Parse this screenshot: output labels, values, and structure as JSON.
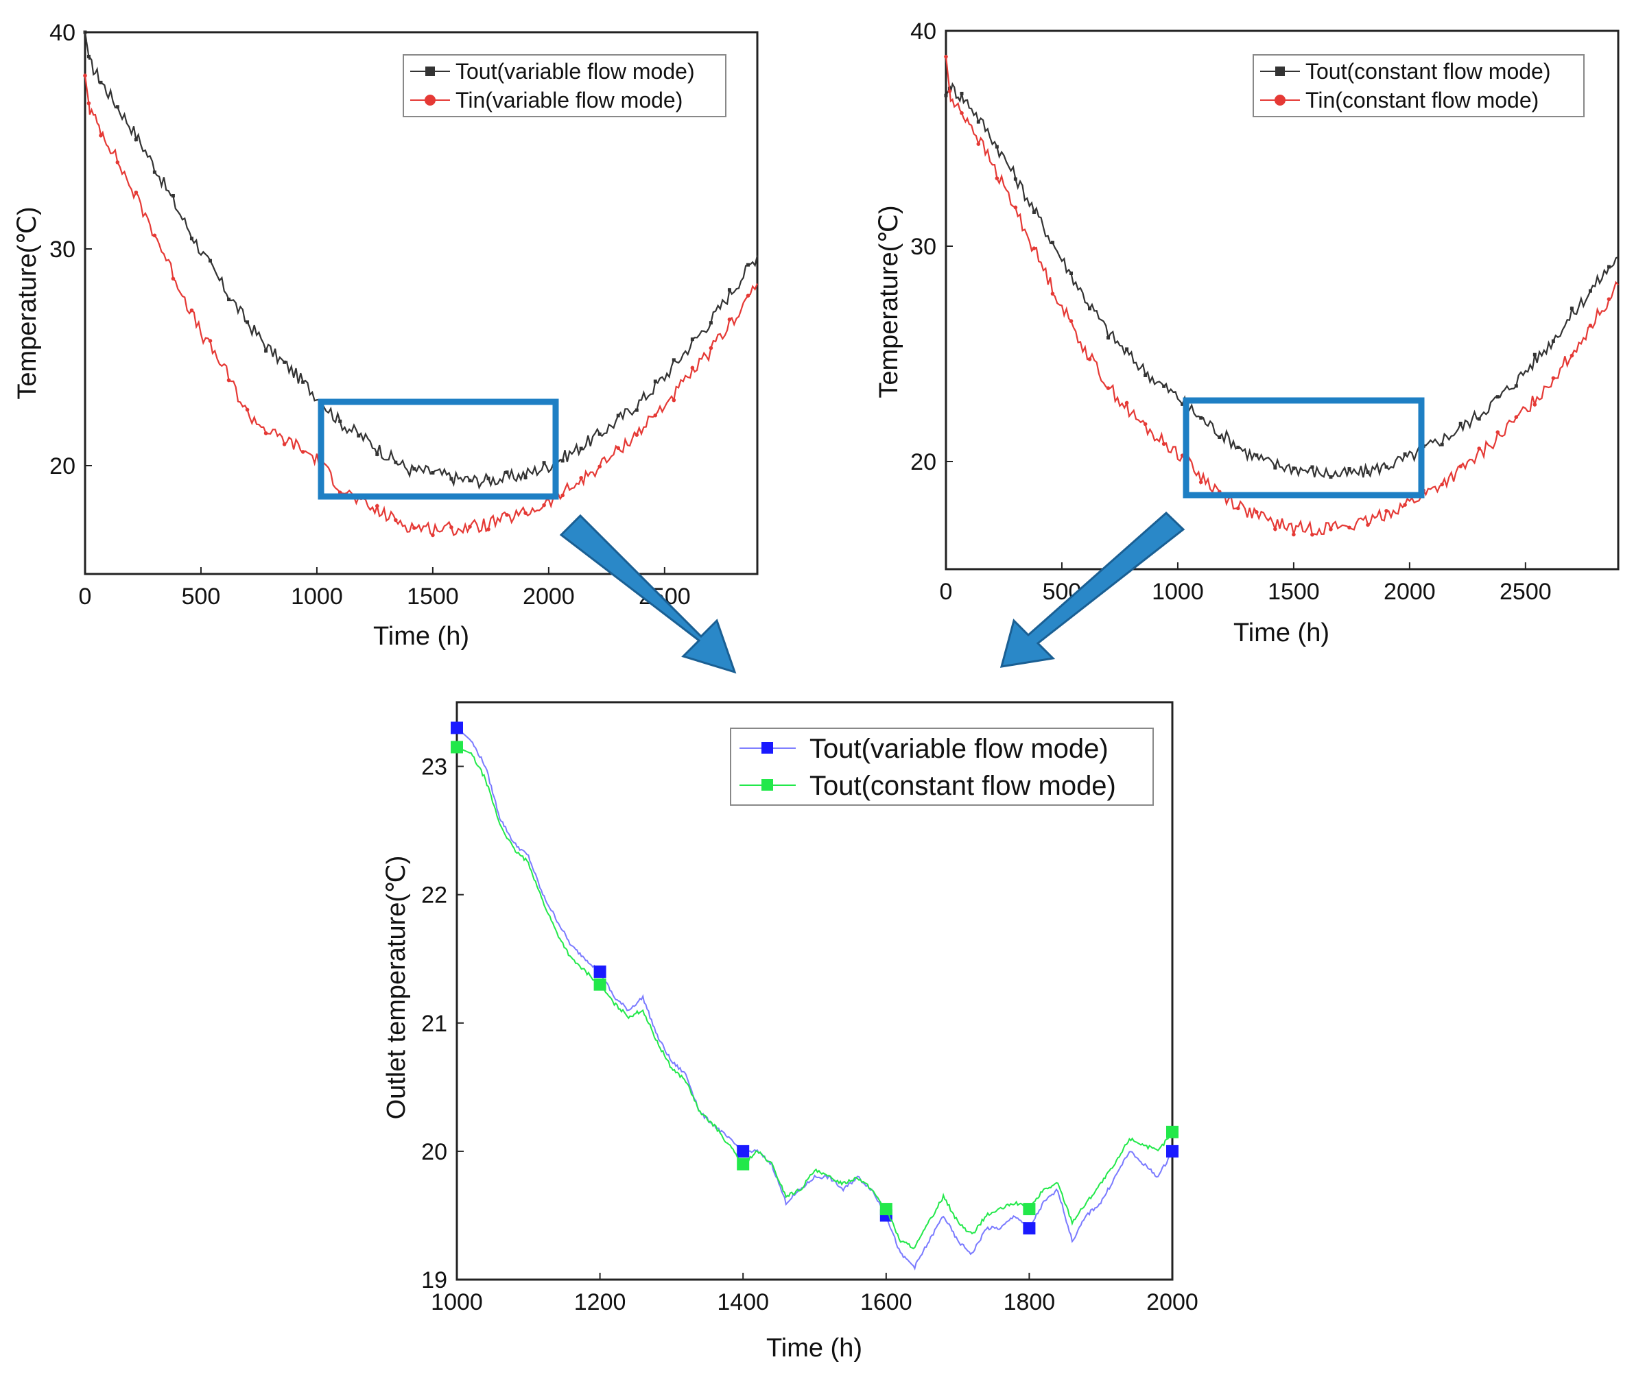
{
  "chart_data": [
    {
      "id": "left",
      "type": "line",
      "title": "",
      "xlabel": "Time (h)",
      "ylabel": "Temperature(℃)",
      "xlim": [
        0,
        2900
      ],
      "ylim": [
        15,
        40
      ],
      "x_ticks": [
        "0",
        "500",
        "1000",
        "1500",
        "2000",
        "2500"
      ],
      "y_ticks": [
        "20",
        "30",
        "40"
      ],
      "legend_position": "top-right",
      "series": [
        {
          "name": "Tout(variable flow mode)",
          "color": "#333333",
          "marker": "square",
          "x": [
            0,
            20,
            100,
            200,
            300,
            400,
            500,
            600,
            700,
            800,
            900,
            1000,
            1100,
            1200,
            1300,
            1400,
            1500,
            1600,
            1700,
            1800,
            1900,
            2000,
            2100,
            2200,
            2300,
            2400,
            2500,
            2600,
            2700,
            2800,
            2900
          ],
          "values": [
            40.0,
            38.6,
            37.2,
            35.6,
            33.8,
            31.8,
            29.9,
            28.2,
            26.6,
            25.3,
            24.3,
            23.2,
            22.0,
            21.3,
            20.5,
            19.8,
            19.7,
            19.4,
            19.3,
            19.4,
            19.6,
            20.0,
            20.6,
            21.3,
            22.1,
            23.0,
            24.1,
            25.4,
            26.7,
            28.2,
            29.7
          ]
        },
        {
          "name": "Tin(variable flow mode)",
          "color": "#e53935",
          "marker": "circle",
          "x": [
            0,
            20,
            100,
            200,
            300,
            400,
            500,
            600,
            700,
            800,
            900,
            1000,
            1100,
            1200,
            1300,
            1400,
            1500,
            1600,
            1700,
            1800,
            1900,
            2000,
            2100,
            2200,
            2300,
            2400,
            2500,
            2600,
            2700,
            2800,
            2900
          ],
          "values": [
            38.0,
            36.4,
            34.9,
            32.8,
            30.7,
            28.4,
            26.1,
            24.5,
            22.4,
            21.5,
            21.0,
            20.3,
            19.0,
            18.2,
            17.7,
            17.2,
            17.1,
            17.1,
            17.2,
            17.5,
            17.8,
            18.3,
            19.0,
            19.8,
            20.7,
            21.7,
            22.8,
            24.0,
            25.3,
            26.8,
            28.4
          ]
        }
      ],
      "annotation": "blue box highlights 1000-2000 h"
    },
    {
      "id": "right",
      "type": "line",
      "title": "",
      "xlabel": "Time (h)",
      "ylabel": "Temperature(℃)",
      "xlim": [
        0,
        2900
      ],
      "ylim": [
        15,
        40
      ],
      "x_ticks": [
        "0",
        "500",
        "1000",
        "1500",
        "2000",
        "2500"
      ],
      "y_ticks": [
        "20",
        "30",
        "40"
      ],
      "legend_position": "top-right",
      "series": [
        {
          "name": "Tout(constant flow mode)",
          "color": "#333333",
          "marker": "square",
          "x": [
            0,
            20,
            100,
            200,
            300,
            400,
            500,
            600,
            700,
            800,
            900,
            1000,
            1100,
            1200,
            1300,
            1400,
            1500,
            1600,
            1700,
            1800,
            1900,
            2000,
            2100,
            2200,
            2300,
            2400,
            2500,
            2600,
            2700,
            2800,
            2900
          ],
          "values": [
            37.0,
            37.4,
            36.6,
            35.0,
            33.2,
            31.3,
            29.4,
            27.6,
            26.0,
            24.8,
            23.8,
            23.0,
            22.0,
            21.2,
            20.4,
            19.9,
            19.7,
            19.5,
            19.4,
            19.5,
            19.8,
            20.2,
            20.8,
            21.4,
            22.2,
            23.1,
            24.2,
            25.4,
            26.8,
            28.2,
            29.5
          ]
        },
        {
          "name": "Tin(constant flow mode)",
          "color": "#e53935",
          "marker": "circle",
          "x": [
            0,
            20,
            100,
            200,
            300,
            400,
            500,
            600,
            700,
            800,
            900,
            1000,
            1100,
            1200,
            1300,
            1400,
            1500,
            1600,
            1700,
            1800,
            1900,
            2000,
            2100,
            2200,
            2300,
            2400,
            2500,
            2600,
            2700,
            2800,
            2900
          ],
          "values": [
            38.8,
            36.8,
            35.8,
            33.8,
            31.7,
            29.4,
            27.2,
            25.2,
            23.5,
            22.2,
            21.2,
            20.4,
            19.3,
            18.4,
            17.7,
            17.2,
            16.9,
            16.9,
            17.0,
            17.1,
            17.6,
            18.1,
            18.7,
            19.4,
            20.3,
            21.3,
            22.4,
            23.6,
            25.0,
            26.6,
            28.2
          ]
        }
      ],
      "annotation": "blue box highlights 1000-2000 h"
    },
    {
      "id": "bottom",
      "type": "line",
      "title": "",
      "xlabel": "Time (h)",
      "ylabel": "Outlet temperature(℃)",
      "xlim": [
        1000,
        2000
      ],
      "ylim": [
        19,
        23.5
      ],
      "x_ticks": [
        "1000",
        "1200",
        "1400",
        "1600",
        "1800",
        "2000"
      ],
      "y_ticks": [
        "19",
        "20",
        "21",
        "22",
        "23"
      ],
      "legend_position": "top-right",
      "series": [
        {
          "name": "Tout(variable flow mode)",
          "color": "#1a1aff",
          "marker": "square",
          "x": [
            1000,
            1020,
            1040,
            1060,
            1080,
            1100,
            1120,
            1140,
            1160,
            1180,
            1200,
            1220,
            1240,
            1260,
            1280,
            1300,
            1320,
            1340,
            1360,
            1380,
            1400,
            1420,
            1440,
            1460,
            1480,
            1500,
            1520,
            1540,
            1560,
            1580,
            1600,
            1620,
            1640,
            1660,
            1680,
            1700,
            1720,
            1740,
            1760,
            1780,
            1800,
            1820,
            1840,
            1860,
            1880,
            1900,
            1920,
            1940,
            1960,
            1980,
            2000
          ],
          "values": [
            23.3,
            23.2,
            23.0,
            22.6,
            22.4,
            22.3,
            22.0,
            21.8,
            21.6,
            21.5,
            21.4,
            21.2,
            21.1,
            21.2,
            20.9,
            20.7,
            20.6,
            20.3,
            20.2,
            20.1,
            20.0,
            20.0,
            19.9,
            19.6,
            19.7,
            19.8,
            19.8,
            19.7,
            19.8,
            19.7,
            19.5,
            19.2,
            19.1,
            19.3,
            19.5,
            19.3,
            19.2,
            19.4,
            19.4,
            19.5,
            19.4,
            19.6,
            19.7,
            19.3,
            19.5,
            19.6,
            19.8,
            20.0,
            19.9,
            19.8,
            20.0
          ]
        },
        {
          "name": "Tout(constant flow mode)",
          "color": "#22e84a",
          "marker": "square",
          "x": [
            1000,
            1020,
            1040,
            1060,
            1080,
            1100,
            1120,
            1140,
            1160,
            1180,
            1200,
            1220,
            1240,
            1260,
            1280,
            1300,
            1320,
            1340,
            1360,
            1380,
            1400,
            1420,
            1440,
            1460,
            1480,
            1500,
            1520,
            1540,
            1560,
            1580,
            1600,
            1620,
            1640,
            1660,
            1680,
            1700,
            1720,
            1740,
            1760,
            1780,
            1800,
            1820,
            1840,
            1860,
            1880,
            1900,
            1920,
            1940,
            1960,
            1980,
            2000
          ],
          "values": [
            23.15,
            23.1,
            22.9,
            22.55,
            22.35,
            22.25,
            21.95,
            21.7,
            21.5,
            21.4,
            21.3,
            21.15,
            21.05,
            21.1,
            20.85,
            20.65,
            20.55,
            20.3,
            20.2,
            20.05,
            19.9,
            20.0,
            19.9,
            19.65,
            19.7,
            19.85,
            19.8,
            19.75,
            19.8,
            19.7,
            19.55,
            19.3,
            19.25,
            19.45,
            19.65,
            19.45,
            19.35,
            19.5,
            19.55,
            19.6,
            19.55,
            19.7,
            19.75,
            19.45,
            19.6,
            19.75,
            19.9,
            20.1,
            20.05,
            20.0,
            20.15
          ]
        }
      ]
    }
  ],
  "colors": {
    "highlight_box": "#1e7fc4",
    "arrow_fill": "#2a88c8",
    "arrow_stroke": "#1a5f93"
  }
}
